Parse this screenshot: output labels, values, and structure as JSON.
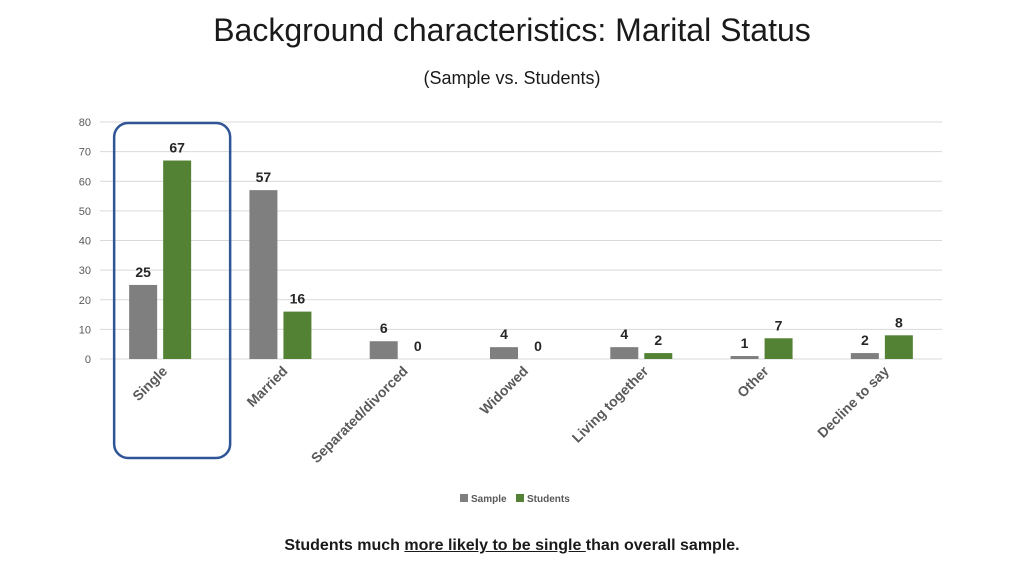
{
  "title": "Background characteristics: Marital Status",
  "subtitle": "(Sample vs. Students)",
  "caption": {
    "before": "Students much ",
    "emphasis": "more likely to be single ",
    "after": "than overall sample."
  },
  "colors": {
    "sample": "#7f7f7f",
    "students": "#548235",
    "highlight": "#2f5597",
    "grid": "#d9d9d9"
  },
  "chart_data": {
    "type": "bar",
    "title": "",
    "categories": [
      "Single",
      "Married",
      "Separated/divorced",
      "Widowed",
      "Living together",
      "Other",
      "Decline to say"
    ],
    "series": [
      {
        "name": "Sample",
        "values": [
          25,
          57,
          6,
          4,
          4,
          1,
          2
        ]
      },
      {
        "name": "Students",
        "values": [
          67,
          16,
          0,
          0,
          2,
          7,
          8
        ]
      }
    ],
    "yticks": [
      0,
      10,
      20,
      30,
      40,
      50,
      60,
      70,
      80
    ],
    "ylim": [
      0,
      80
    ],
    "grid": true,
    "legend": "bottom",
    "highlighted_category": "Single"
  }
}
